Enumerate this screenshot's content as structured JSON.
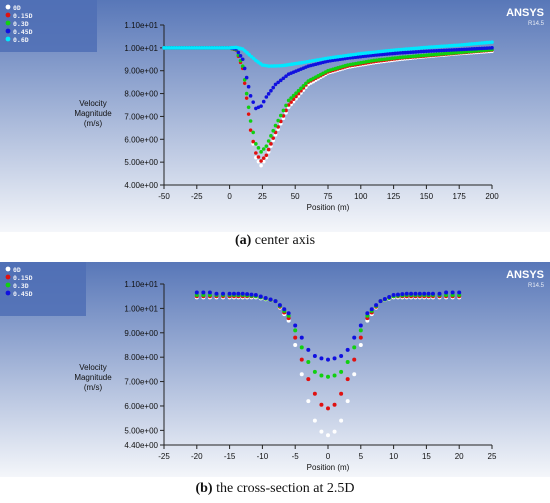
{
  "chart_data": [
    {
      "type": "scatter",
      "brand": "ANSYS",
      "version": "R14.5",
      "ylabel": [
        "Velocity",
        "Magnitude",
        "(m/s)"
      ],
      "xlabel": "Position (m)",
      "xlim": [
        -50,
        200
      ],
      "ylim": [
        4.0,
        11.0
      ],
      "xticks": [
        -50,
        -25,
        0,
        25,
        50,
        75,
        100,
        125,
        150,
        175,
        200
      ],
      "xtick_labels": [
        "-50",
        "-25",
        "0",
        "25",
        "50",
        "75",
        "100",
        "125",
        "150",
        "175",
        "200"
      ],
      "yticks": [
        4.0,
        5.0,
        6.0,
        7.0,
        8.0,
        9.0,
        10.0,
        11.0
      ],
      "ytick_labels": [
        "4.00e+00",
        "5.00e+00",
        "6.00e+00",
        "7.00e+00",
        "8.00e+00",
        "9.00e+00",
        "1.00e+01",
        "1.10e+01"
      ],
      "legend_position": "top-left",
      "series": [
        {
          "name": "0D",
          "color": "#ffffff",
          "x": [
            -50,
            -25,
            0,
            5,
            10,
            13,
            16,
            20,
            24,
            28,
            35,
            45,
            60,
            75,
            90,
            110,
            130,
            150,
            175,
            200
          ],
          "y": [
            10.0,
            10.0,
            10.0,
            9.9,
            9.1,
            7.8,
            6.4,
            5.2,
            4.85,
            5.2,
            6.2,
            7.4,
            8.4,
            8.9,
            9.15,
            9.35,
            9.5,
            9.62,
            9.75,
            9.85
          ]
        },
        {
          "name": "0.15D",
          "color": "#e01010",
          "x": [
            -50,
            -25,
            0,
            5,
            10,
            13,
            16,
            20,
            24,
            28,
            35,
            45,
            60,
            75,
            90,
            110,
            130,
            150,
            175,
            200
          ],
          "y": [
            10.0,
            10.0,
            10.0,
            9.9,
            9.1,
            7.8,
            6.4,
            5.4,
            5.05,
            5.3,
            6.3,
            7.5,
            8.5,
            8.95,
            9.2,
            9.4,
            9.55,
            9.65,
            9.78,
            9.9
          ]
        },
        {
          "name": "0.3D",
          "color": "#10d010",
          "x": [
            -50,
            -25,
            0,
            5,
            10,
            13,
            16,
            20,
            24,
            28,
            35,
            45,
            60,
            75,
            90,
            110,
            130,
            150,
            175,
            200
          ],
          "y": [
            10.0,
            10.0,
            10.0,
            9.92,
            9.2,
            8.0,
            6.8,
            5.8,
            5.45,
            5.7,
            6.6,
            7.7,
            8.55,
            9.0,
            9.25,
            9.45,
            9.58,
            9.68,
            9.8,
            9.92
          ]
        },
        {
          "name": "0.45D",
          "color": "#1010e0",
          "x": [
            -50,
            -25,
            0,
            5,
            10,
            13,
            16,
            20,
            24,
            28,
            35,
            45,
            60,
            75,
            90,
            110,
            130,
            150,
            175,
            200
          ],
          "y": [
            10.0,
            10.0,
            10.0,
            9.95,
            9.5,
            8.7,
            7.9,
            7.35,
            7.45,
            7.85,
            8.4,
            8.85,
            9.2,
            9.42,
            9.55,
            9.68,
            9.78,
            9.85,
            9.92,
            10.0
          ]
        },
        {
          "name": "0.6D",
          "color": "#00e8ff",
          "x": [
            -50,
            -25,
            0,
            5,
            10,
            15,
            20,
            25,
            30,
            40,
            55,
            75,
            100,
            125,
            150,
            175,
            200
          ],
          "y": [
            10.0,
            10.0,
            10.0,
            10.02,
            9.95,
            9.7,
            9.45,
            9.25,
            9.2,
            9.22,
            9.35,
            9.55,
            9.75,
            9.9,
            10.02,
            10.12,
            10.25
          ]
        }
      ]
    },
    {
      "type": "scatter",
      "brand": "ANSYS",
      "version": "R14.5",
      "ylabel": [
        "Velocity",
        "Magnitude",
        "(m/s)"
      ],
      "xlabel": "Position (m)",
      "xlim": [
        -25,
        25
      ],
      "ylim": [
        4.4,
        11.0
      ],
      "xticks": [
        -25,
        -20,
        -15,
        -10,
        -5,
        0,
        5,
        10,
        15,
        20,
        25
      ],
      "xtick_labels": [
        "-25",
        "-20",
        "-15",
        "-10",
        "-5",
        "0",
        "5",
        "10",
        "15",
        "20",
        "25"
      ],
      "yticks": [
        4.4,
        5.0,
        6.0,
        7.0,
        8.0,
        9.0,
        10.0,
        11.0
      ],
      "ytick_labels": [
        "4.40e+00",
        "5.00e+00",
        "6.00e+00",
        "7.00e+00",
        "8.00e+00",
        "9.00e+00",
        "1.00e+01",
        "1.10e+01"
      ],
      "legend_position": "top-left",
      "series": [
        {
          "name": "0D",
          "color": "#ffffff",
          "x": [
            -20,
            -19,
            -18,
            -17,
            -16,
            -15,
            -13,
            -11,
            -8,
            -6,
            -5,
            -4,
            -3,
            -2,
            -1,
            0,
            1,
            2,
            3,
            4,
            5,
            6,
            8,
            10,
            12,
            14,
            16,
            17,
            18,
            19,
            20
          ],
          "y": [
            10.45,
            10.45,
            10.45,
            10.45,
            10.45,
            10.45,
            10.45,
            10.45,
            10.3,
            9.5,
            8.5,
            7.3,
            6.2,
            5.4,
            4.95,
            4.8,
            4.95,
            5.4,
            6.2,
            7.3,
            8.5,
            9.5,
            10.3,
            10.45,
            10.45,
            10.45,
            10.45,
            10.45,
            10.45,
            10.45,
            10.45
          ]
        },
        {
          "name": "0.15D",
          "color": "#e01010",
          "x": [
            -20,
            -19,
            -18,
            -17,
            -16,
            -15,
            -13,
            -11,
            -8,
            -6,
            -5,
            -4,
            -3,
            -2,
            -1,
            0,
            1,
            2,
            3,
            4,
            5,
            6,
            8,
            10,
            12,
            14,
            16,
            17,
            18,
            19,
            20
          ],
          "y": [
            10.5,
            10.5,
            10.5,
            10.5,
            10.5,
            10.5,
            10.5,
            10.5,
            10.3,
            9.6,
            8.8,
            7.9,
            7.1,
            6.5,
            6.05,
            5.9,
            6.05,
            6.5,
            7.1,
            7.9,
            8.8,
            9.6,
            10.3,
            10.5,
            10.5,
            10.5,
            10.5,
            10.5,
            10.5,
            10.5,
            10.5
          ]
        },
        {
          "name": "0.3D",
          "color": "#10d010",
          "x": [
            -20,
            -19,
            -18,
            -17,
            -16,
            -15,
            -13,
            -11,
            -8,
            -6,
            -5,
            -4,
            -3,
            -2,
            -1,
            0,
            1,
            2,
            3,
            4,
            5,
            6,
            8,
            10,
            12,
            14,
            16,
            17,
            18,
            19,
            20
          ],
          "y": [
            10.55,
            10.55,
            10.55,
            10.55,
            10.55,
            10.55,
            10.55,
            10.5,
            10.3,
            9.7,
            9.1,
            8.4,
            7.8,
            7.4,
            7.25,
            7.2,
            7.25,
            7.4,
            7.8,
            8.4,
            9.1,
            9.7,
            10.3,
            10.5,
            10.55,
            10.55,
            10.55,
            10.55,
            10.55,
            10.55,
            10.55
          ]
        },
        {
          "name": "0.45D",
          "color": "#1010e0",
          "x": [
            -20,
            -19,
            -18,
            -17,
            -16,
            -15,
            -13,
            -11,
            -8,
            -6,
            -5,
            -4,
            -3,
            -2,
            -1,
            0,
            1,
            2,
            3,
            4,
            5,
            6,
            8,
            10,
            12,
            14,
            16,
            17,
            18,
            19,
            20
          ],
          "y": [
            10.65,
            10.65,
            10.65,
            10.6,
            10.6,
            10.6,
            10.6,
            10.55,
            10.3,
            9.8,
            9.3,
            8.8,
            8.3,
            8.05,
            7.95,
            7.9,
            7.95,
            8.05,
            8.3,
            8.8,
            9.3,
            9.8,
            10.3,
            10.55,
            10.6,
            10.6,
            10.6,
            10.6,
            10.65,
            10.65,
            10.65
          ]
        }
      ]
    }
  ],
  "captions": [
    {
      "label": "(a)",
      "text": " center axis"
    },
    {
      "label": "(b)",
      "text": " the cross-section at 2.5D"
    }
  ]
}
